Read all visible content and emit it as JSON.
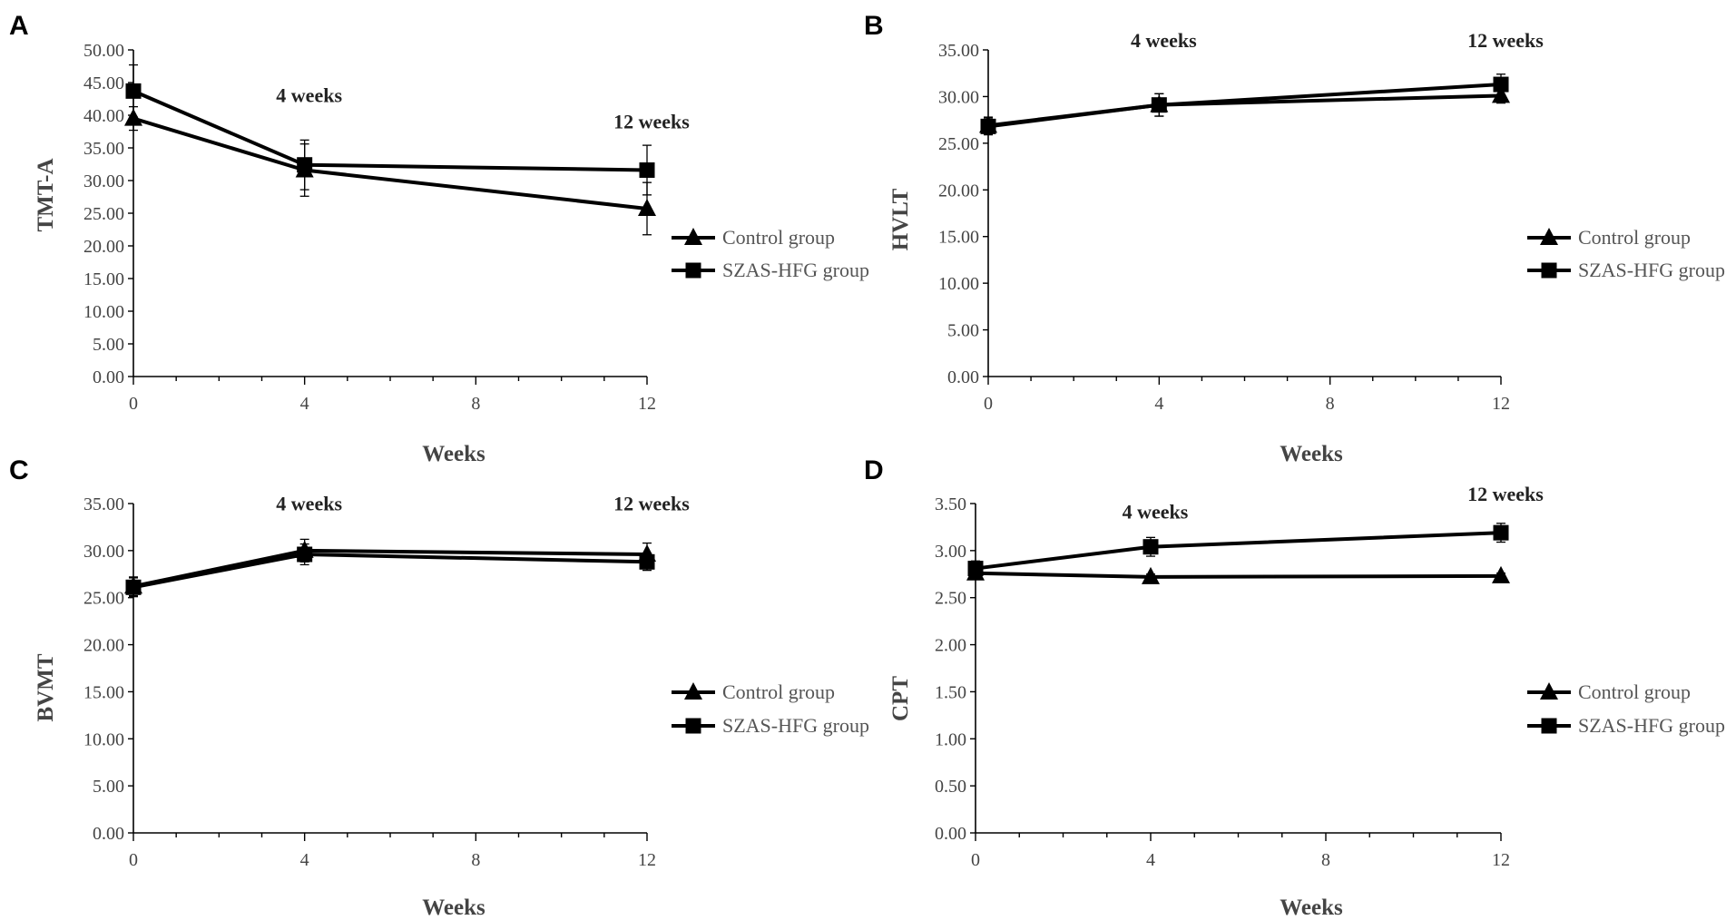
{
  "chart_data": [
    {
      "panel": "A",
      "type": "line",
      "ylabel": "TMT-A",
      "xlabel": "Weeks",
      "xlim": [
        0,
        12
      ],
      "ylim": [
        0,
        50
      ],
      "x_ticks": [
        "0",
        "4",
        "8",
        "12"
      ],
      "y_ticks": [
        "0.00",
        "5.00",
        "10.00",
        "15.00",
        "20.00",
        "25.00",
        "30.00",
        "35.00",
        "40.00",
        "45.00",
        "50.00"
      ],
      "annotations": [
        {
          "text": "4 weeks",
          "x": 4,
          "y": 42
        },
        {
          "text": "12 weeks",
          "x": 12,
          "y": 38
        }
      ],
      "x": [
        0,
        4,
        12
      ],
      "series": [
        {
          "name": "Control group",
          "marker": "triangle",
          "values": [
            39.5,
            31.6,
            25.7
          ],
          "errors": [
            1.8,
            4.0,
            4.0
          ]
        },
        {
          "name": "SZAS-HFG group",
          "marker": "square",
          "values": [
            43.7,
            32.4,
            31.6
          ],
          "errors": [
            4.0,
            3.8,
            3.8
          ]
        }
      ]
    },
    {
      "panel": "B",
      "type": "line",
      "ylabel": "HVLT",
      "xlabel": "Weeks",
      "xlim": [
        0,
        12
      ],
      "ylim": [
        0,
        35
      ],
      "x_ticks": [
        "0",
        "4",
        "8",
        "12"
      ],
      "y_ticks": [
        "0.00",
        "5.00",
        "10.00",
        "15.00",
        "20.00",
        "25.00",
        "30.00",
        "35.00"
      ],
      "annotations": [
        {
          "text": "4 weeks",
          "x": 4,
          "y": 35.3
        },
        {
          "text": "12 weeks",
          "x": 12,
          "y": 35.3
        }
      ],
      "x": [
        0,
        4,
        12
      ],
      "series": [
        {
          "name": "Control group",
          "marker": "triangle",
          "values": [
            26.9,
            29.1,
            30.1
          ],
          "errors": [
            0.9,
            1.2,
            0.8
          ]
        },
        {
          "name": "SZAS-HFG group",
          "marker": "square",
          "values": [
            26.8,
            29.1,
            31.3
          ],
          "errors": [
            0.9,
            1.2,
            1.1
          ]
        }
      ]
    },
    {
      "panel": "C",
      "type": "line",
      "ylabel": "BVMT",
      "xlabel": "Weeks",
      "xlim": [
        0,
        12
      ],
      "ylim": [
        0,
        35
      ],
      "x_ticks": [
        "0",
        "4",
        "8",
        "12"
      ],
      "y_ticks": [
        "0.00",
        "5.00",
        "10.00",
        "15.00",
        "20.00",
        "25.00",
        "30.00",
        "35.00"
      ],
      "annotations": [
        {
          "text": "4 weeks",
          "x": 4,
          "y": 34.3
        },
        {
          "text": "12 weeks",
          "x": 12,
          "y": 34.3
        }
      ],
      "x": [
        0,
        4,
        12
      ],
      "series": [
        {
          "name": "Control group",
          "marker": "triangle",
          "values": [
            26.2,
            30.0,
            29.6
          ],
          "errors": [
            1.0,
            1.2,
            1.2
          ]
        },
        {
          "name": "SZAS-HFG group",
          "marker": "square",
          "values": [
            26.1,
            29.6,
            28.8
          ],
          "errors": [
            1.0,
            1.1,
            0.9
          ]
        }
      ]
    },
    {
      "panel": "D",
      "type": "line",
      "ylabel": "CPT",
      "xlabel": "Weeks",
      "xlim": [
        0,
        12
      ],
      "ylim": [
        0,
        3.5
      ],
      "x_ticks": [
        "0",
        "4",
        "8",
        "12"
      ],
      "y_ticks": [
        "0.00",
        "0.50",
        "1.00",
        "1.50",
        "2.00",
        "2.50",
        "3.00",
        "3.50"
      ],
      "annotations": [
        {
          "text": "4 weeks",
          "x": 4,
          "y": 3.34
        },
        {
          "text": "12 weeks",
          "x": 12,
          "y": 3.53
        }
      ],
      "x": [
        0,
        4,
        12
      ],
      "series": [
        {
          "name": "Control group",
          "marker": "triangle",
          "values": [
            2.76,
            2.72,
            2.73
          ],
          "errors": [
            0.05,
            0.03,
            0.03
          ]
        },
        {
          "name": "SZAS-HFG group",
          "marker": "square",
          "values": [
            2.81,
            3.04,
            3.19
          ],
          "errors": [
            0.08,
            0.1,
            0.1
          ]
        }
      ]
    }
  ]
}
